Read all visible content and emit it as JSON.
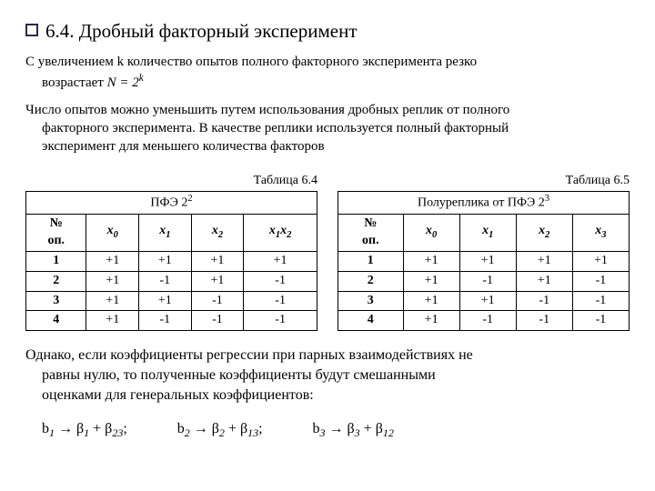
{
  "heading": "6.4. Дробный факторный эксперимент",
  "p1_l1": "С увеличением k  количество опытов полного факторного эксперимента резко",
  "p1_l2_a": "возрастает ",
  "p1_l2_b": "N = 2",
  "p1_l2_sup": "k",
  "p2_l1": "Число опытов можно уменьшить путем использования дробных реплик от полного",
  "p2_l2": "факторного эксперимента. В качестве реплики используется полный факторный",
  "p2_l3": "эксперимент для меньшего количества факторов",
  "table_left": {
    "caption": "Таблица 6.4",
    "title_a": "ПФЭ  2",
    "title_sup": "2",
    "col_no_1": "№",
    "col_no_2": "оп.",
    "cols": [
      "x",
      "x",
      "x",
      "x",
      "x"
    ],
    "col_subs": [
      "0",
      "1",
      "2"
    ],
    "col_pair": "1",
    "col_pair2": "2",
    "rows": [
      [
        "1",
        "+1",
        "+1",
        "+1",
        "+1"
      ],
      [
        "2",
        "+1",
        "-1",
        "+1",
        "-1"
      ],
      [
        "3",
        "+1",
        "+1",
        "-1",
        "-1"
      ],
      [
        "4",
        "+1",
        "-1",
        "-1",
        "-1"
      ]
    ]
  },
  "table_right": {
    "caption": "Таблица 6.5",
    "title_a": "Полуреплика  от ПФЭ  2",
    "title_sup": "3",
    "col_no_1": "№",
    "col_no_2": "оп.",
    "col_subs": [
      "0",
      "1",
      "2",
      "3"
    ],
    "rows": [
      [
        "1",
        "+1",
        "+1",
        "+1",
        "+1"
      ],
      [
        "2",
        "+1",
        "-1",
        "+1",
        "-1"
      ],
      [
        "3",
        "+1",
        "+1",
        "-1",
        "-1"
      ],
      [
        "4",
        "+1",
        "-1",
        "-1",
        "-1"
      ]
    ]
  },
  "p3_l1": "Однако, если коэффициенты регрессии при парных взаимодействиях не",
  "p3_l2": "равны нулю, то полученные коэффициенты будут смешанными",
  "p3_l3": "оценками для генеральных коэффициентов:",
  "beta": {
    "b": "b",
    "arrow": " → ",
    "beta": "β",
    "plus": " + ",
    "semi": ";",
    "s1": "1",
    "s2": "2",
    "s3": "3",
    "s23": "23",
    "s13": "13",
    "s12": "12"
  }
}
